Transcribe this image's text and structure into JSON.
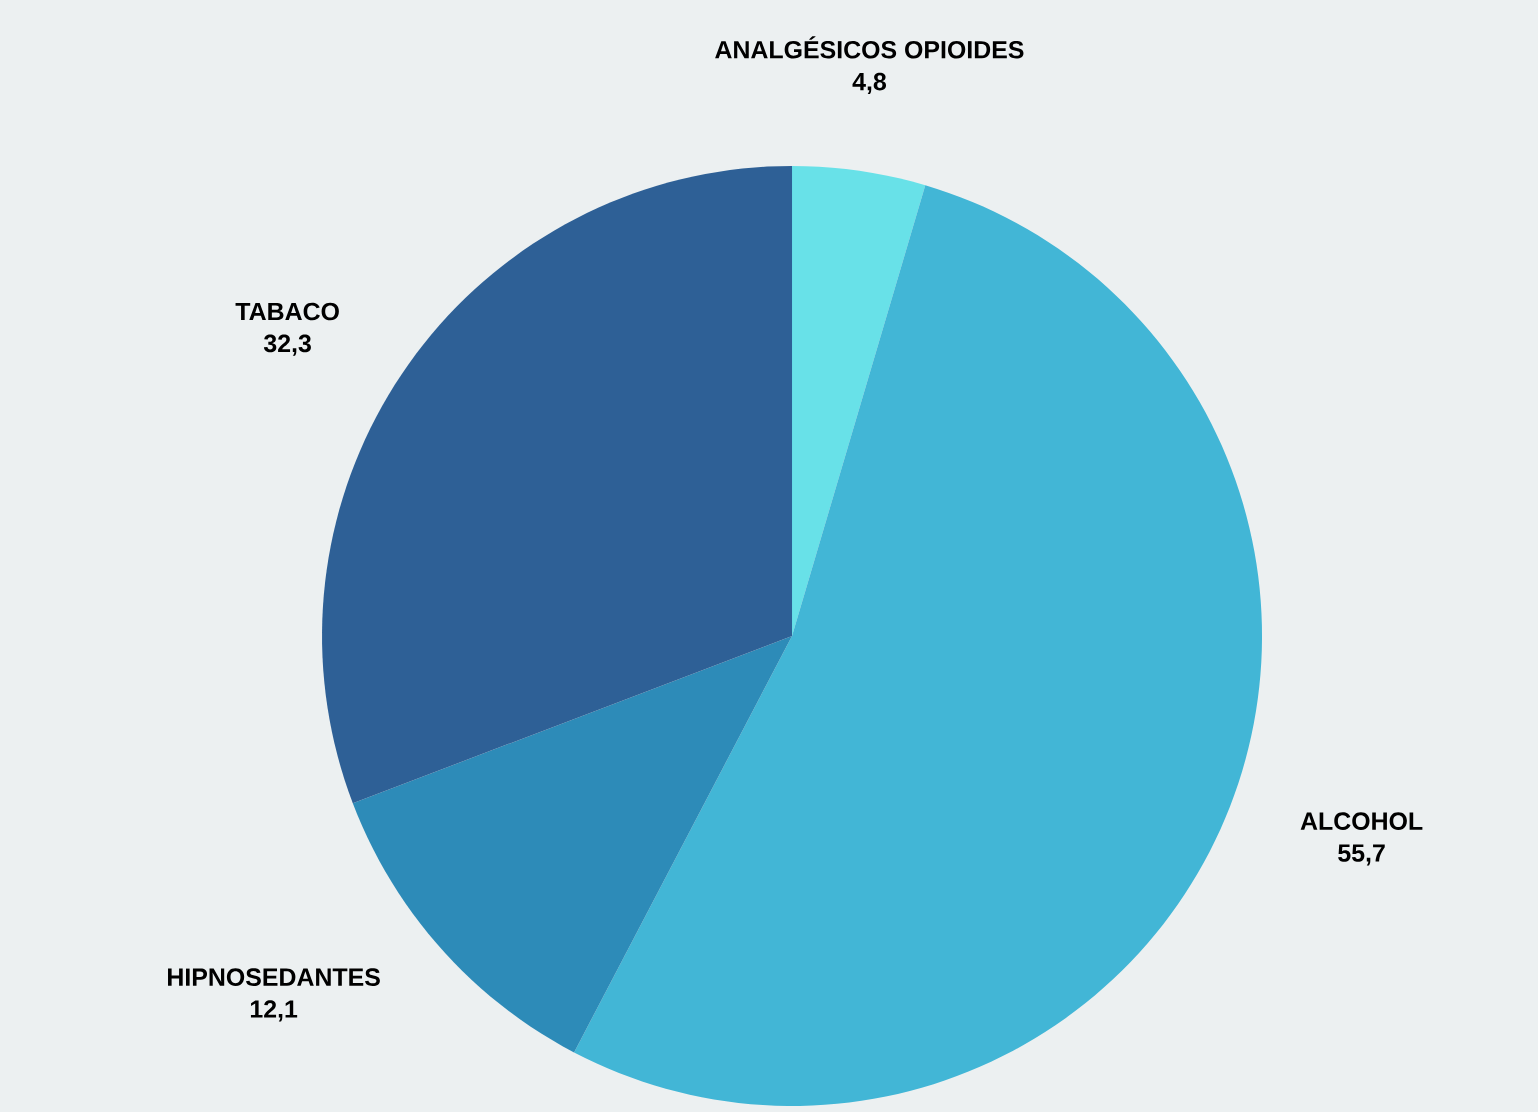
{
  "chart_data": {
    "type": "pie",
    "categories": [
      "ANALGÉSICOS OPIOIDES",
      "ALCOHOL",
      "HIPNOSEDANTES",
      "TABACO"
    ],
    "values": [
      4.8,
      55.7,
      12.1,
      32.3
    ],
    "value_labels": [
      "4,8",
      "55,7",
      "12,1",
      "32,3"
    ],
    "colors": [
      "#68e1e8",
      "#42b6d6",
      "#2d8bb8",
      "#2e6096"
    ]
  }
}
